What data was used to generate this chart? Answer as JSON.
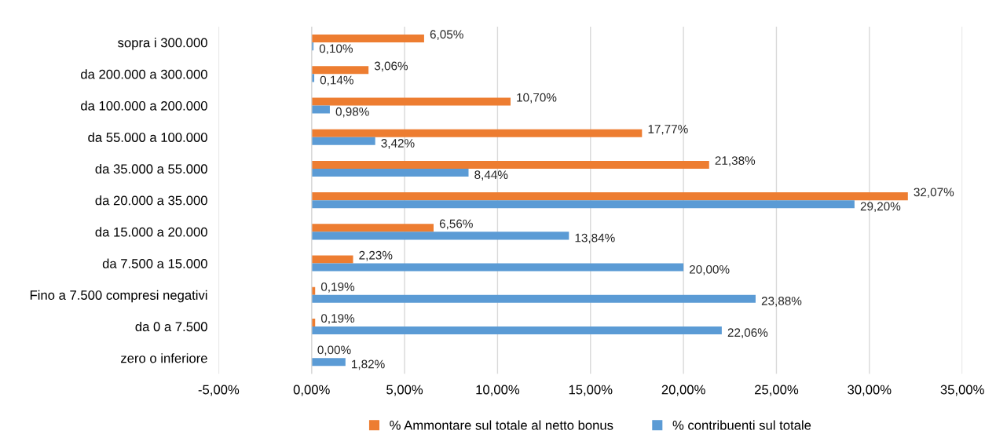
{
  "chart_data": {
    "type": "bar",
    "orientation": "horizontal",
    "categories": [
      "sopra i 300.000",
      "da 200.000 a 300.000",
      "da 100.000 a 200.000",
      "da 55.000 a 100.000",
      "da 35.000 a 55.000",
      "da 20.000 a 35.000",
      "da 15.000 a 20.000",
      "da 7.500 a 15.000",
      "Fino a 7.500 compresi negativi",
      "da 0 a 7.500",
      "zero o inferiore"
    ],
    "series": [
      {
        "name": "% Ammontare sul totale al netto bonus",
        "color": "#ed7d31",
        "values": [
          6.05,
          3.06,
          10.7,
          17.77,
          21.38,
          32.07,
          6.56,
          2.23,
          0.19,
          0.19,
          0.0
        ],
        "value_labels": [
          "6,05%",
          "3,06%",
          "10,70%",
          "17,77%",
          "21,38%",
          "32,07%",
          "6,56%",
          "2,23%",
          "0,19%",
          "0,19%",
          "0,00%"
        ]
      },
      {
        "name": "% contribuenti sul totale",
        "color": "#5b9bd5",
        "values": [
          0.1,
          0.14,
          0.98,
          3.42,
          8.44,
          29.2,
          13.84,
          20.0,
          23.88,
          22.06,
          1.82
        ],
        "value_labels": [
          "0,10%",
          "0,14%",
          "0,98%",
          "3,42%",
          "8,44%",
          "29,20%",
          "13,84%",
          "20,00%",
          "23,88%",
          "22,06%",
          "1,82%"
        ]
      }
    ],
    "xlim": [
      -5,
      35
    ],
    "xticks": [
      {
        "value": -5,
        "label": "-5,00%"
      },
      {
        "value": 0,
        "label": "0,00%"
      },
      {
        "value": 5,
        "label": "5,00%"
      },
      {
        "value": 10,
        "label": "10,00%"
      },
      {
        "value": 15,
        "label": "15,00%"
      },
      {
        "value": 20,
        "label": "20,00%"
      },
      {
        "value": 25,
        "label": "25,00%"
      },
      {
        "value": 30,
        "label": "30,00%"
      },
      {
        "value": 35,
        "label": "35,00%"
      }
    ],
    "grid": "x",
    "legend": "bottom"
  }
}
